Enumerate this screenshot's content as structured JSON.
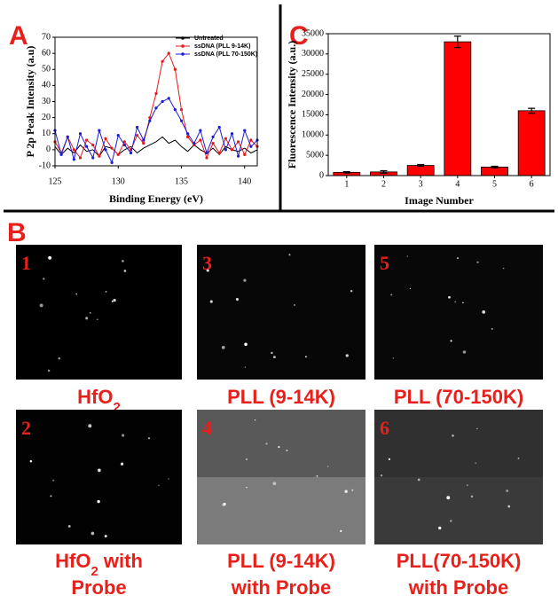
{
  "chart_data": [
    {
      "type": "line",
      "panel_label": "A",
      "xlabel": "Binding Energy (eV)",
      "ylabel": "P 2p Peak Intensity (a.u)",
      "x": [
        125,
        125.5,
        126,
        126.5,
        127,
        127.5,
        128,
        128.5,
        129,
        129.5,
        130,
        130.5,
        131,
        131.5,
        132,
        132.5,
        133,
        133.5,
        134,
        134.5,
        135,
        135.5,
        136,
        136.5,
        137,
        137.5,
        138,
        138.5,
        139,
        139.5,
        140,
        140.5,
        141
      ],
      "xlim": [
        125,
        141
      ],
      "xticks": [
        125,
        130,
        135,
        140
      ],
      "ylim": [
        -10,
        70
      ],
      "yticks": [
        -10,
        0,
        10,
        20,
        30,
        40,
        50,
        60,
        70
      ],
      "series": [
        {
          "name": "Untreated",
          "color": "#000000",
          "values": [
            2,
            -3,
            1,
            -2,
            3,
            -1,
            0,
            -4,
            2,
            1,
            -3,
            0,
            2,
            -2,
            1,
            3,
            5,
            8,
            4,
            6,
            2,
            -1,
            3,
            0,
            -2,
            1,
            -3,
            2,
            0,
            -1,
            1,
            -2,
            0
          ]
        },
        {
          "name": "ssDNA (PLL 9-14K)",
          "color": "#e8181a",
          "values": [
            5,
            -2,
            8,
            0,
            -5,
            6,
            3,
            -4,
            7,
            1,
            -3,
            5,
            0,
            9,
            4,
            20,
            35,
            55,
            60,
            50,
            25,
            8,
            3,
            6,
            -5,
            4,
            -2,
            7,
            0,
            5,
            -3,
            6,
            2
          ]
        },
        {
          "name": "ssDNA (PLL 70-150K)",
          "color": "#1c1cd8",
          "values": [
            12,
            -3,
            8,
            -6,
            10,
            2,
            -5,
            12,
            0,
            -8,
            9,
            3,
            -2,
            14,
            6,
            18,
            26,
            30,
            32,
            25,
            18,
            10,
            4,
            12,
            -2,
            8,
            14,
            0,
            10,
            -4,
            12,
            2,
            6
          ]
        }
      ]
    },
    {
      "type": "bar",
      "panel_label": "C",
      "xlabel": "Image Number",
      "ylabel": "Fluorescence Intensity (a.u.)",
      "categories": [
        "1",
        "2",
        "3",
        "4",
        "5",
        "6"
      ],
      "values": [
        800,
        900,
        2500,
        33000,
        2100,
        16000
      ],
      "errors": [
        150,
        300,
        200,
        1400,
        200,
        600
      ],
      "color": "#ff0000",
      "ylim": [
        0,
        35000
      ],
      "yticks": [
        0,
        5000,
        10000,
        15000,
        20000,
        25000,
        30000,
        35000
      ]
    }
  ],
  "panel_b": {
    "label": "B",
    "tiles": [
      {
        "number": "1",
        "caption": [
          [
            {
              "text": "HfO"
            },
            {
              "text": "2",
              "sub": true
            }
          ]
        ]
      },
      {
        "number": "3",
        "caption": [
          [
            {
              "text": "PLL (9-14K)"
            }
          ]
        ]
      },
      {
        "number": "5",
        "caption": [
          [
            {
              "text": "PLL (70-150K)"
            }
          ]
        ]
      },
      {
        "number": "2",
        "caption": [
          [
            {
              "text": "HfO"
            },
            {
              "text": "2",
              "sub": true
            },
            {
              "text": " with"
            }
          ],
          [
            {
              "text": "Probe"
            }
          ]
        ]
      },
      {
        "number": "4",
        "caption": [
          [
            {
              "text": "PLL (9-14K)"
            }
          ],
          [
            {
              "text": "with Probe"
            }
          ]
        ]
      },
      {
        "number": "6",
        "caption": [
          [
            {
              "text": "PLL(70-150K)"
            }
          ],
          [
            {
              "text": "with Probe"
            }
          ]
        ]
      }
    ]
  }
}
